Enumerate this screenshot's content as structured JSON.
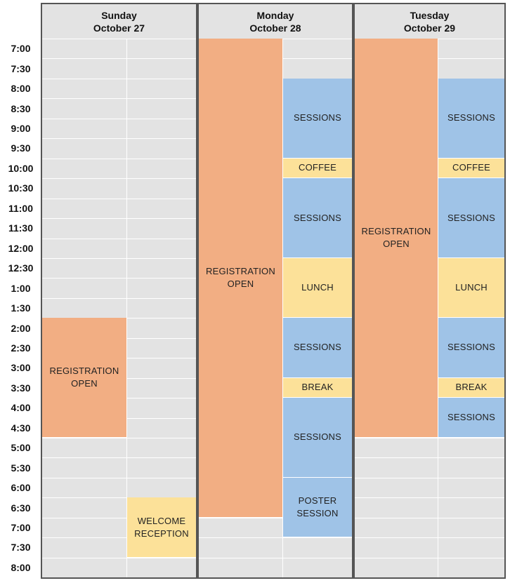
{
  "colors": {
    "registration": "#f2ae83",
    "sessions": "#9fc3e7",
    "break": "#fce199",
    "grid_bg": "#e3e3e3",
    "border": "#555555"
  },
  "times": [
    "7:00",
    "7:30",
    "8:00",
    "8:30",
    "9:00",
    "9:30",
    "10:00",
    "10:30",
    "11:00",
    "11:30",
    "12:00",
    "12:30",
    "1:00",
    "1:30",
    "2:00",
    "2:30",
    "3:00",
    "3:30",
    "4:00",
    "4:30",
    "5:00",
    "5:30",
    "6:00",
    "6:30",
    "7:00",
    "7:30",
    "8:00"
  ],
  "days": [
    {
      "day": "Sunday",
      "date": "October 27",
      "events": [
        {
          "label": "REGISTRATION\nOPEN",
          "col": 0,
          "start": 14,
          "end": 20,
          "kind": "registration"
        },
        {
          "label": "WELCOME\nRECEPTION",
          "col": 1,
          "start": 23,
          "end": 26,
          "kind": "break"
        }
      ]
    },
    {
      "day": "Monday",
      "date": "October 28",
      "events": [
        {
          "label": "REGISTRATION\nOPEN",
          "col": 0,
          "start": 0,
          "end": 24,
          "kind": "registration"
        },
        {
          "label": "SESSIONS",
          "col": 1,
          "start": 2,
          "end": 6,
          "kind": "sessions"
        },
        {
          "label": "COFFEE",
          "col": 1,
          "start": 6,
          "end": 7,
          "kind": "break"
        },
        {
          "label": "SESSIONS",
          "col": 1,
          "start": 7,
          "end": 11,
          "kind": "sessions"
        },
        {
          "label": "LUNCH",
          "col": 1,
          "start": 11,
          "end": 14,
          "kind": "break"
        },
        {
          "label": "SESSIONS",
          "col": 1,
          "start": 14,
          "end": 17,
          "kind": "sessions"
        },
        {
          "label": "BREAK",
          "col": 1,
          "start": 17,
          "end": 18,
          "kind": "break"
        },
        {
          "label": "SESSIONS",
          "col": 1,
          "start": 18,
          "end": 22,
          "kind": "sessions"
        },
        {
          "label": "POSTER\nSESSION",
          "col": 1,
          "start": 22,
          "end": 25,
          "kind": "sessions"
        }
      ]
    },
    {
      "day": "Tuesday",
      "date": "October 29",
      "events": [
        {
          "label": "REGISTRATION\nOPEN",
          "col": 0,
          "start": 0,
          "end": 20,
          "kind": "registration"
        },
        {
          "label": "SESSIONS",
          "col": 1,
          "start": 2,
          "end": 6,
          "kind": "sessions"
        },
        {
          "label": "COFFEE",
          "col": 1,
          "start": 6,
          "end": 7,
          "kind": "break"
        },
        {
          "label": "SESSIONS",
          "col": 1,
          "start": 7,
          "end": 11,
          "kind": "sessions"
        },
        {
          "label": "LUNCH",
          "col": 1,
          "start": 11,
          "end": 14,
          "kind": "break"
        },
        {
          "label": "SESSIONS",
          "col": 1,
          "start": 14,
          "end": 17,
          "kind": "sessions"
        },
        {
          "label": "BREAK",
          "col": 1,
          "start": 17,
          "end": 18,
          "kind": "break"
        },
        {
          "label": "SESSIONS",
          "col": 1,
          "start": 18,
          "end": 20,
          "kind": "sessions"
        }
      ]
    }
  ]
}
